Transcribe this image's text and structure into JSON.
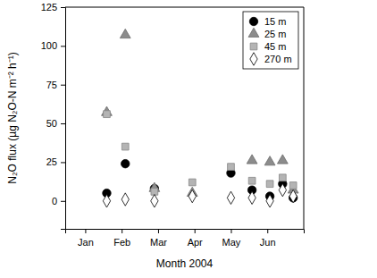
{
  "chart_data": {
    "type": "scatter",
    "x_label": "Month 2004",
    "y_label": "N₂O flux (µg N₂O-N m⁻² h⁻¹)",
    "x": [
      1.59,
      2.1,
      2.9,
      3.94,
      5.0,
      5.58,
      6.07,
      6.42,
      6.71
    ],
    "series": [
      {
        "name": "15 m",
        "color": "#000000",
        "marker": "circle",
        "values": [
          5,
          24,
          8,
          null,
          18,
          7,
          3,
          11,
          2
        ]
      },
      {
        "name": "25 m",
        "color": "#8c8c8c",
        "marker": "triangle",
        "values": [
          57,
          107,
          8,
          5,
          null,
          26,
          25,
          26,
          7
        ]
      },
      {
        "name": "45 m",
        "color": "#b4b4b4",
        "marker": "square",
        "values": [
          56,
          35,
          6,
          12,
          22,
          13,
          11,
          15,
          10
        ]
      },
      {
        "name": "270 m",
        "color": "#ffffff",
        "marker": "diamond",
        "values": [
          0,
          1,
          0,
          3,
          2,
          2,
          0,
          7,
          3
        ]
      }
    ],
    "xlim": [
      0.45,
      7.0
    ],
    "xticks": [
      {
        "value": 1,
        "label": "Jan"
      },
      {
        "value": 2,
        "label": "Feb"
      },
      {
        "value": 3,
        "label": "Mar"
      },
      {
        "value": 4,
        "label": "Apr"
      },
      {
        "value": 5,
        "label": "May"
      },
      {
        "value": 6,
        "label": "Jun"
      }
    ],
    "ylim": [
      -18,
      125
    ],
    "yticks": [
      0,
      25,
      50,
      75,
      100,
      125
    ],
    "legend": "top-right",
    "grid": false
  }
}
